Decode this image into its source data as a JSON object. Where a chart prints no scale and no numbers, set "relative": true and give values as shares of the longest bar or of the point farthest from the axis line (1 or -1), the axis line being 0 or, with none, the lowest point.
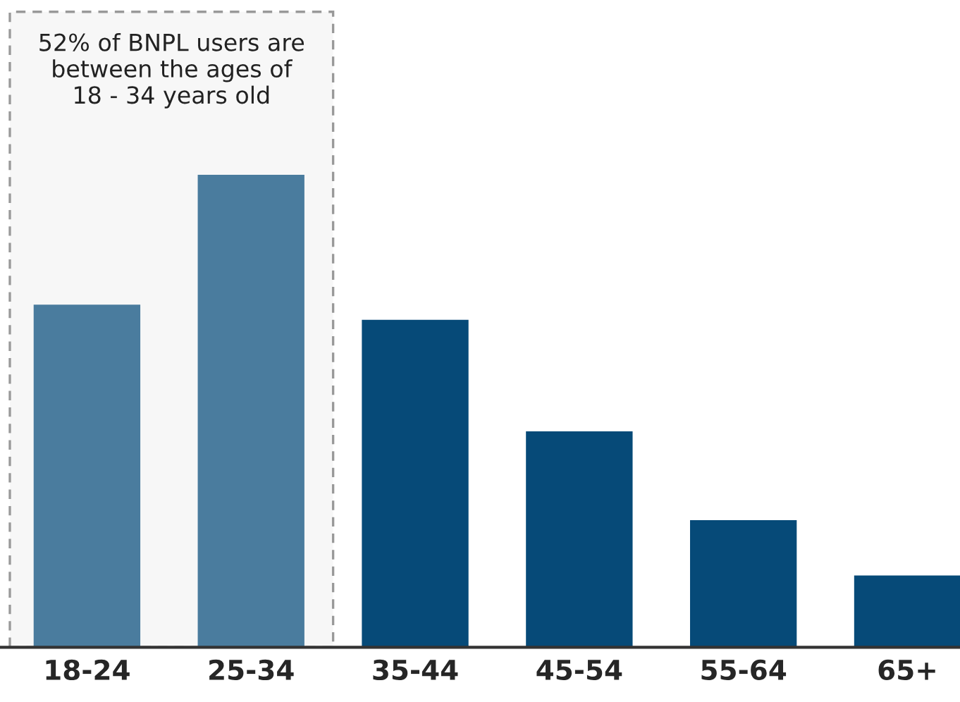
{
  "chart_data": {
    "type": "bar",
    "relative": true,
    "categories": [
      "18-24",
      "25-34",
      "35-44",
      "45-54",
      "55-64",
      "65+"
    ],
    "values": [
      0.725,
      1,
      0.693,
      0.457,
      0.269,
      0.152
    ],
    "colors": [
      "#4a7c9e",
      "#4a7c9e",
      "#064a78",
      "#064a78",
      "#064a78",
      "#064a78"
    ],
    "bands": [
      {
        "axis": "x",
        "from": "18-24",
        "to": "25-34",
        "label": "52% of BNPL users are between the ages of 18 - 34 years old",
        "color": "#f7f7f7"
      }
    ],
    "grid": false,
    "legend": false
  }
}
